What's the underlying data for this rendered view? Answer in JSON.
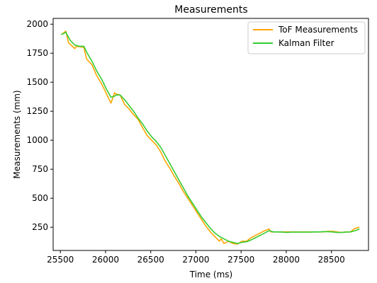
{
  "chart_data": {
    "type": "line",
    "title": "Measurements",
    "xlabel": "Time (ms)",
    "ylabel": "Measurements (mm)",
    "xlim": [
      25420,
      28910
    ],
    "ylim": [
      50,
      2050
    ],
    "xticks": [
      25500,
      26000,
      26500,
      27000,
      27500,
      28000,
      28500
    ],
    "yticks": [
      250,
      500,
      750,
      1000,
      1250,
      1500,
      1750,
      2000
    ],
    "grid": false,
    "legend_position": "top-right",
    "series": [
      {
        "name": "ToF Measurements",
        "color": "#ffa500",
        "x": [
          25510,
          25560,
          25590,
          25660,
          25680,
          25760,
          25790,
          25850,
          25900,
          25960,
          26010,
          26060,
          26100,
          26110,
          26160,
          26210,
          26260,
          26310,
          26360,
          26410,
          26460,
          26510,
          26560,
          26610,
          26660,
          26710,
          26760,
          26810,
          26860,
          26910,
          26960,
          27010,
          27060,
          27110,
          27160,
          27210,
          27260,
          27280,
          27310,
          27360,
          27410,
          27460,
          27510,
          27560,
          27610,
          27660,
          27710,
          27760,
          27810,
          27830,
          27860,
          27910,
          27960,
          28010,
          28060,
          28110,
          28160,
          28210,
          28260,
          28310,
          28360,
          28410,
          28460,
          28510,
          28560,
          28610,
          28660,
          28710,
          28760,
          28810
        ],
        "y": [
          1910,
          1940,
          1840,
          1790,
          1810,
          1800,
          1700,
          1650,
          1560,
          1480,
          1400,
          1320,
          1410,
          1400,
          1390,
          1310,
          1270,
          1220,
          1180,
          1110,
          1040,
          1000,
          960,
          900,
          820,
          760,
          690,
          630,
          560,
          500,
          440,
          380,
          320,
          260,
          210,
          170,
          130,
          150,
          110,
          130,
          110,
          105,
          130,
          130,
          160,
          180,
          200,
          220,
          235,
          210,
          210,
          210,
          210,
          210,
          210,
          210,
          210,
          210,
          210,
          210,
          210,
          210,
          215,
          215,
          210,
          205,
          210,
          210,
          240,
          250
        ]
      },
      {
        "name": "Kalman Filter",
        "color": "#32cd32",
        "x": [
          25510,
          25560,
          25610,
          25660,
          25710,
          25760,
          25790,
          25850,
          25900,
          25960,
          26010,
          26060,
          26100,
          26120,
          26160,
          26210,
          26260,
          26310,
          26360,
          26410,
          26460,
          26510,
          26560,
          26610,
          26660,
          26710,
          26760,
          26810,
          26860,
          26910,
          26960,
          27010,
          27060,
          27110,
          27160,
          27210,
          27260,
          27310,
          27360,
          27410,
          27460,
          27510,
          27560,
          27610,
          27660,
          27710,
          27760,
          27810,
          27860,
          27910,
          27960,
          28010,
          28060,
          28110,
          28160,
          28210,
          28260,
          28310,
          28360,
          28410,
          28460,
          28510,
          28560,
          28610,
          28660,
          28710,
          28760,
          28810
        ],
        "y": [
          1910,
          1930,
          1860,
          1820,
          1810,
          1810,
          1760,
          1680,
          1600,
          1520,
          1440,
          1370,
          1380,
          1390,
          1390,
          1350,
          1300,
          1250,
          1190,
          1140,
          1080,
          1030,
          990,
          940,
          870,
          800,
          730,
          660,
          590,
          520,
          460,
          400,
          340,
          290,
          240,
          200,
          170,
          150,
          130,
          120,
          110,
          120,
          125,
          140,
          160,
          180,
          200,
          220,
          210,
          210,
          208,
          205,
          208,
          208,
          208,
          208,
          208,
          210,
          210,
          212,
          212,
          210,
          205,
          205,
          208,
          210,
          220,
          235
        ]
      }
    ]
  }
}
